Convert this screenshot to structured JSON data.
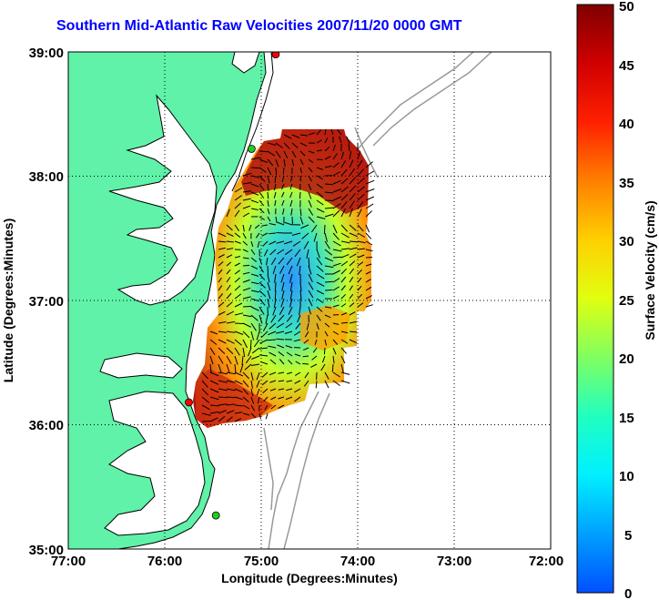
{
  "title": "Southern Mid-Atlantic Raw Velocities 2007/11/20 0000 GMT",
  "x_axis": {
    "label": "Longitude (Degrees:Minutes)",
    "ticks": [
      "77:00",
      "76:00",
      "75:00",
      "74:00",
      "73:00",
      "72:00"
    ]
  },
  "y_axis": {
    "label": "Latitude (Degrees:Minutes)",
    "ticks": [
      "39:00",
      "38:00",
      "37:00",
      "36:00",
      "35:00"
    ]
  },
  "colorbar": {
    "label": "Surface Velocity (cm/s)",
    "ticks": [
      "50",
      "45",
      "40",
      "35",
      "30",
      "25",
      "20",
      "15",
      "10",
      "5",
      "0"
    ],
    "min": 0,
    "max": 50
  },
  "chart_data": {
    "type": "heatmap",
    "title": "Southern Mid-Atlantic Raw Velocities 2007/11/20 0000 GMT",
    "xlabel": "Longitude (Degrees:Minutes)",
    "ylabel": "Latitude (Degrees:Minutes)",
    "xlim": [
      -77,
      -72
    ],
    "ylim": [
      35,
      39
    ],
    "grid": true,
    "colorscale_label": "Surface Velocity (cm/s)",
    "colorscale_range": [
      0,
      50
    ],
    "stations": [
      {
        "lon": -74.85,
        "lat": 38.98,
        "color": "#ff0000"
      },
      {
        "lon": -75.1,
        "lat": 38.22,
        "color": "#22cc22"
      },
      {
        "lon": -75.75,
        "lat": 36.18,
        "color": "#ff0000"
      },
      {
        "lon": -75.47,
        "lat": 35.27,
        "color": "#22cc22"
      }
    ]
  },
  "colors": {
    "land": "#5ff2a8",
    "coast": "#000000",
    "bathymetry": "#999999",
    "title": "#0000ff"
  }
}
